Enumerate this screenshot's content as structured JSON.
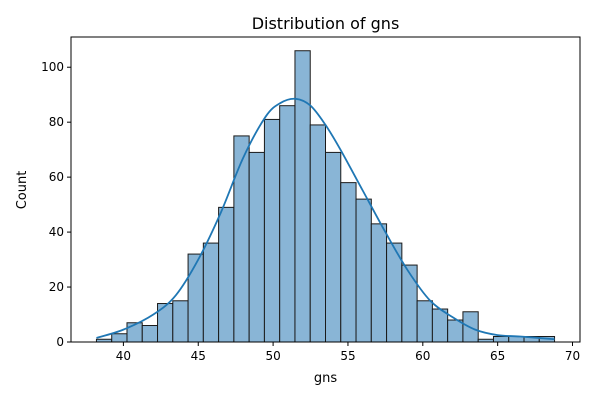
{
  "chart_data": {
    "type": "bar",
    "title": "Distribution of gns",
    "xlabel": "gns",
    "ylabel": "Count",
    "xlim": [
      36.5,
      70.5
    ],
    "ylim": [
      0,
      111
    ],
    "xticks": [
      40,
      45,
      50,
      55,
      60,
      65,
      70
    ],
    "yticks": [
      0,
      20,
      40,
      60,
      80,
      100
    ],
    "bin_edges": [
      38.2,
      39.22,
      40.24,
      41.26,
      42.28,
      43.3,
      44.32,
      45.34,
      46.36,
      47.38,
      48.4,
      49.42,
      50.44,
      51.46,
      52.48,
      53.5,
      54.52,
      55.54,
      56.56,
      57.58,
      58.6,
      59.62,
      60.64,
      61.66,
      62.68,
      63.7,
      64.72,
      65.74,
      66.76,
      67.78,
      68.8
    ],
    "counts": [
      1,
      3,
      7,
      6,
      14,
      15,
      32,
      36,
      49,
      75,
      69,
      81,
      86,
      106,
      79,
      69,
      58,
      52,
      43,
      36,
      28,
      15,
      12,
      8,
      11,
      1,
      2,
      2,
      2,
      2
    ],
    "kde": {
      "x": [
        38.2,
        40,
        42,
        43.5,
        45,
        46.5,
        48,
        49.5,
        50.5,
        51.5,
        52.5,
        53.5,
        54.5,
        56,
        57.5,
        59,
        60.5,
        62,
        63.5,
        65,
        66.5,
        68.8
      ],
      "y": [
        1.5,
        4.5,
        10,
        17,
        30,
        47,
        67,
        82,
        87,
        88.5,
        86,
        79,
        70,
        55,
        40,
        26,
        15,
        9,
        4.5,
        2.5,
        2,
        1
      ]
    },
    "grid": false,
    "colors": {
      "bar_fill": "#89b5d6",
      "bar_edge": "#1a1a1a",
      "kde_line": "#1f77b4",
      "axis": "#000000"
    }
  }
}
